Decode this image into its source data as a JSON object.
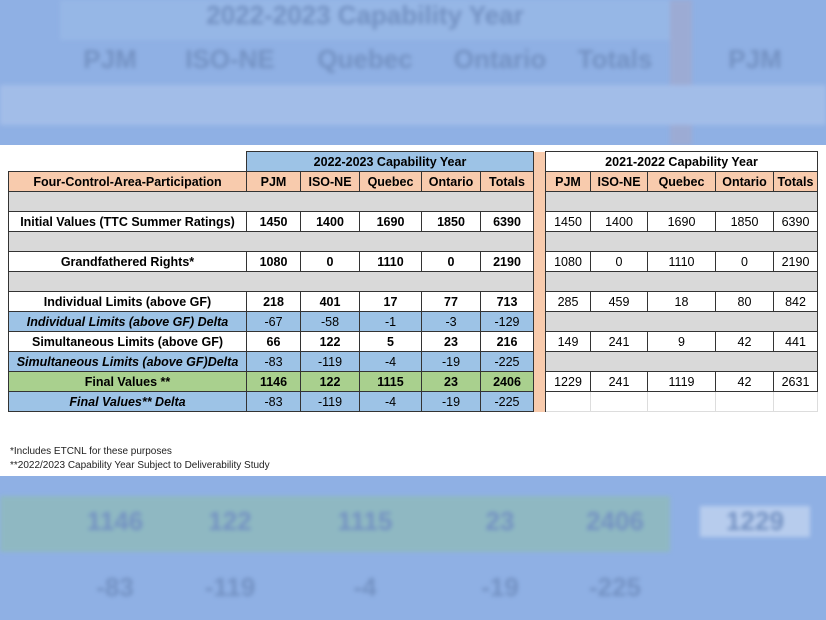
{
  "table": {
    "row_header_title": "Four-Control-Area-Participation",
    "year_2022": "2022-2023 Capability Year",
    "year_2021": "2021-2022 Capability Year",
    "columns": [
      "PJM",
      "ISO-NE",
      "Quebec",
      "Ontario",
      "Totals"
    ],
    "rows": [
      {
        "label": "",
        "style": "blank",
        "left": null,
        "right": null
      },
      {
        "label": "Initial Values (TTC Summer Ratings)",
        "style": "white",
        "left": [
          "1450",
          "1400",
          "1690",
          "1850",
          "6390"
        ],
        "right": [
          "1450",
          "1400",
          "1690",
          "1850",
          "6390"
        ]
      },
      {
        "label": "",
        "style": "blank",
        "left": null,
        "right": null
      },
      {
        "label": "Grandfathered Rights*",
        "style": "white",
        "left": [
          "1080",
          "0",
          "1110",
          "0",
          "2190"
        ],
        "right": [
          "1080",
          "0",
          "1110",
          "0",
          "2190"
        ]
      },
      {
        "label": "",
        "style": "blank",
        "left": null,
        "right": null
      },
      {
        "label": "Individual Limits (above GF)",
        "style": "white",
        "left": [
          "218",
          "401",
          "17",
          "77",
          "713"
        ],
        "right": [
          "285",
          "459",
          "18",
          "80",
          "842"
        ]
      },
      {
        "label": "Individual Limits (above GF) Delta",
        "style": "delta",
        "left": [
          "-67",
          "-58",
          "-1",
          "-3",
          "-129"
        ],
        "right": null
      },
      {
        "label": "Simultaneous Limits (above GF)",
        "style": "white",
        "left": [
          "66",
          "122",
          "5",
          "23",
          "216"
        ],
        "right": [
          "149",
          "241",
          "9",
          "42",
          "441"
        ]
      },
      {
        "label": "Simultaneous Limits (above GF)Delta",
        "style": "delta",
        "left": [
          "-83",
          "-119",
          "-4",
          "-19",
          "-225"
        ],
        "right": null
      },
      {
        "label": "Final Values **",
        "style": "final",
        "left": [
          "1146",
          "122",
          "1115",
          "23",
          "2406"
        ],
        "right": [
          "1229",
          "241",
          "1119",
          "42",
          "2631"
        ]
      },
      {
        "label": "Final Values** Delta",
        "style": "finaldelta",
        "left": [
          "-83",
          "-119",
          "-4",
          "-19",
          "-225"
        ],
        "right": "empty"
      }
    ]
  },
  "footnotes": [
    "*Includes ETCNL  for these purposes",
    "**2022/2023  Capability Year Subject to Deliverability Study"
  ],
  "colors": {
    "header": "#f8cbad",
    "delta": "#9dc3e6",
    "final": "#a9d08e",
    "blank": "#d9d9d9"
  }
}
